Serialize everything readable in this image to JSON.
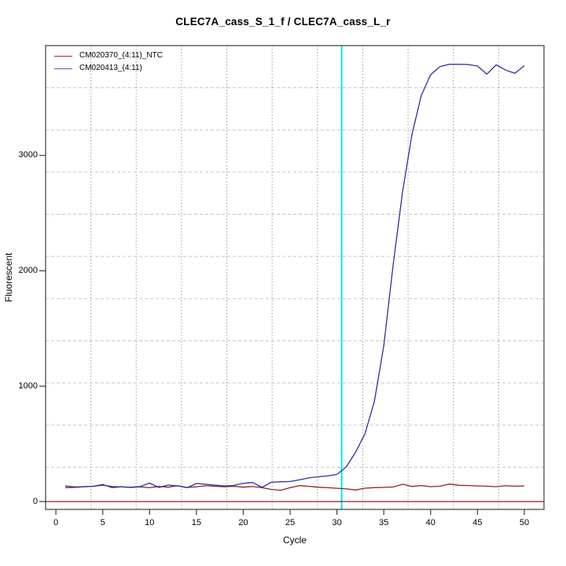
{
  "title": "CLEC7A_cass_S_1_f / CLEC7A_cass_L_r",
  "axes": {
    "x_label": "Cycle",
    "y_label": "Fluorescent",
    "x_tick_labels": [
      "0",
      "5",
      "10",
      "15",
      "20",
      "25",
      "30",
      "35",
      "40",
      "45",
      "50"
    ],
    "y_tick_labels": [
      "0",
      "1000",
      "2000",
      "3000"
    ]
  },
  "legend": {
    "items": [
      {
        "label": "CM020370_(4:11)_NTC",
        "color": "#993333"
      },
      {
        "label": "CM020413_(4:11)",
        "color": "#5B5BB5"
      }
    ]
  },
  "colors": {
    "ntc_curve": "#8B2424",
    "sample_curve": "#30309E",
    "threshold_line": "#8B1F1F",
    "ct_marker_line": "#00E8E8",
    "h_grid": "#C6C6C6",
    "v_grid": "#9E9E9E",
    "axis": "#3C3C3C"
  },
  "chart_data": {
    "type": "line",
    "title": "CLEC7A_cass_S_1_f / CLEC7A_cass_L_r",
    "xlabel": "Cycle",
    "ylabel": "Fluorescent",
    "xlim": [
      -1.1,
      52.1
    ],
    "ylim": [
      -68,
      3952
    ],
    "x_tick_values": [
      0,
      5,
      10,
      15,
      20,
      25,
      30,
      35,
      40,
      45,
      50
    ],
    "y_tick_values": [
      0,
      1000,
      2000,
      3000
    ],
    "grid": "on",
    "legend_position": "top-left",
    "threshold_y": 0,
    "ct_vline_x": 30.5,
    "x": [
      1,
      2,
      3,
      4,
      5,
      6,
      7,
      8,
      9,
      10,
      11,
      12,
      13,
      14,
      15,
      16,
      17,
      18,
      19,
      20,
      21,
      22,
      23,
      24,
      25,
      26,
      27,
      28,
      29,
      30,
      31,
      32,
      33,
      34,
      35,
      36,
      37,
      38,
      39,
      40,
      41,
      42,
      43,
      44,
      45,
      46,
      47,
      48,
      49,
      50
    ],
    "series": [
      {
        "id": "curve-ntc",
        "name": "CM020370_(4:11)_NTC",
        "values": [
          135,
          127,
          129,
          132,
          148,
          120,
          128,
          122,
          127,
          120,
          131,
          125,
          137,
          122,
          128,
          137,
          132,
          128,
          132,
          125,
          130,
          120,
          105,
          98,
          120,
          138,
          132,
          124,
          120,
          115,
          110,
          100,
          116,
          121,
          123,
          126,
          150,
          131,
          139,
          129,
          133,
          152,
          141,
          139,
          136,
          133,
          129,
          137,
          133,
          136
        ]
      },
      {
        "id": "curve-sample",
        "name": "CM020413_(4:11)",
        "values": [
          120,
          123,
          128,
          133,
          142,
          130,
          127,
          124,
          130,
          160,
          122,
          143,
          136,
          120,
          157,
          150,
          142,
          135,
          140,
          158,
          165,
          123,
          168,
          172,
          174,
          188,
          205,
          215,
          222,
          235,
          300,
          430,
          590,
          870,
          1350,
          2050,
          2680,
          3180,
          3520,
          3700,
          3770,
          3790,
          3790,
          3788,
          3775,
          3705,
          3785,
          3740,
          3712,
          3778
        ]
      }
    ]
  }
}
